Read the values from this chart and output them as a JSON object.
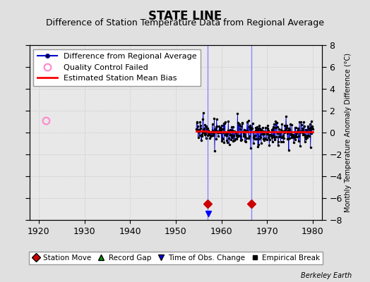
{
  "title": "STATE LINE",
  "subtitle": "Difference of Station Temperature Data from Regional Average",
  "ylabel_right": "Monthly Temperature Anomaly Difference (°C)",
  "xlim": [
    1918,
    1982
  ],
  "ylim": [
    -8,
    8
  ],
  "yticks": [
    -8,
    -6,
    -4,
    -2,
    0,
    2,
    4,
    6,
    8
  ],
  "xticks": [
    1920,
    1930,
    1940,
    1950,
    1960,
    1970,
    1980
  ],
  "bg_color": "#e0e0e0",
  "plot_bg_color": "#e8e8e8",
  "data_start_year": 1954.5,
  "data_end_year": 1980.0,
  "data_mean": 0.05,
  "data_std": 0.55,
  "qc_fail_year": 1921.5,
  "qc_fail_value": 1.1,
  "station_move_years": [
    1957.0,
    1966.5
  ],
  "vertical_line_color": "#8888ff",
  "red_line_segments": [
    [
      1954.5,
      1957.0,
      0.1
    ],
    [
      1957.0,
      1966.5,
      0.05
    ],
    [
      1966.5,
      1980.0,
      0.05
    ]
  ],
  "grid_color": "#cccccc",
  "line_color": "#0000cc",
  "dot_color": "#000000",
  "red_line_color": "#ff0000",
  "qc_color": "#ff88cc",
  "station_move_color": "#cc0000",
  "title_fontsize": 12,
  "subtitle_fontsize": 9,
  "tick_fontsize": 9,
  "legend_fontsize": 8
}
